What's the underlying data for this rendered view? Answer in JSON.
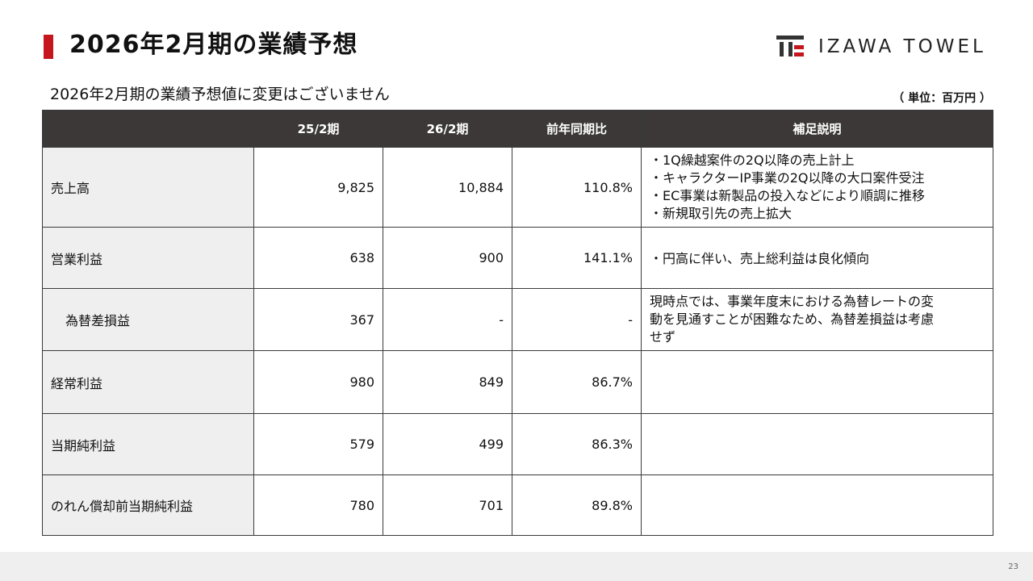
{
  "header": {
    "title": "2026年2月期の業績予想",
    "logo_text": "IZAWA TOWEL"
  },
  "subtitle": "2026年2月期の業績予想値に変更はございません",
  "unit": "（ 単位：百万円 ）",
  "table": {
    "columns": [
      "",
      "25/2期",
      "26/2期",
      "前年同期比",
      "補足説明"
    ],
    "rows": [
      {
        "label": "売上高",
        "fy25": "9,825",
        "fy26": "10,884",
        "yoy": "110.8%",
        "notes": [
          "・1Q繰越案件の2Q以降の売上計上",
          "・キャラクターIP事業の2Q以降の大口案件受注",
          "・EC事業は新製品の投入などにより順調に推移",
          "・新規取引先の売上拡大"
        ]
      },
      {
        "label": "営業利益",
        "fy25": "638",
        "fy26": "900",
        "yoy": "141.1%",
        "notes": [
          "・円高に伴い、売上総利益は良化傾向"
        ]
      },
      {
        "label": "為替差損益",
        "fy25": "367",
        "fy26": "-",
        "yoy": "-",
        "notes": [
          "現時点では、事業年度末における為替レートの変",
          "動を見通すことが困難なため、為替差損益は考慮",
          "せず"
        ]
      },
      {
        "label": "経常利益",
        "fy25": "980",
        "fy26": "849",
        "yoy": "86.7%",
        "notes": []
      },
      {
        "label": "当期純利益",
        "fy25": "579",
        "fy26": "499",
        "yoy": "86.3%",
        "notes": []
      },
      {
        "label": "のれん償却前当期純利益",
        "fy25": "780",
        "fy26": "701",
        "yoy": "89.8%",
        "notes": []
      }
    ]
  },
  "footer": {
    "page_number": "23"
  },
  "colors": {
    "accent": "#c4161c",
    "header_bg": "#3b3837",
    "label_bg": "#efefef"
  }
}
